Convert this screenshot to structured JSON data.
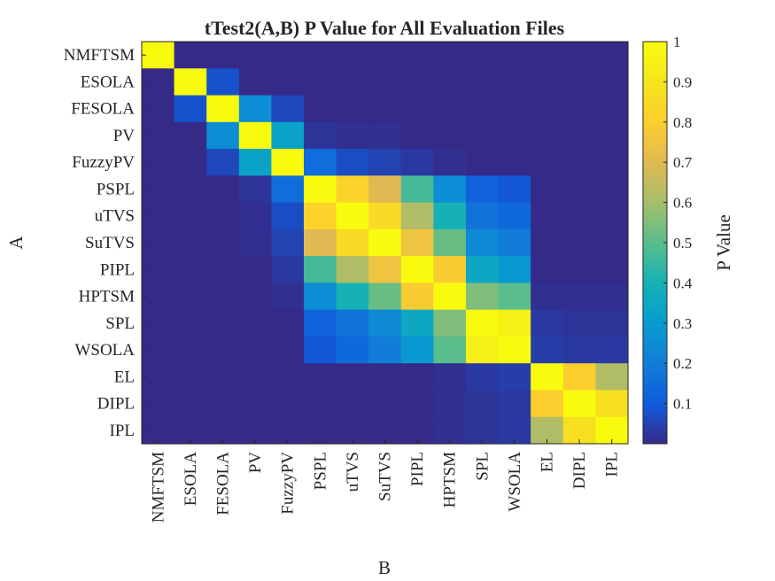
{
  "chart_data": {
    "type": "heatmap",
    "title": "tTest2(A,B) P Value for All Evaluation Files",
    "xlabel": "B",
    "ylabel": "A",
    "colorbar_label": "P Value",
    "colorbar_ticks": [
      "0.1",
      "0.2",
      "0.3",
      "0.4",
      "0.5",
      "0.6",
      "0.7",
      "0.8",
      "0.9",
      "1"
    ],
    "colorbar_range": [
      0,
      1
    ],
    "colormap": "parula",
    "categories": [
      "NMFTSM",
      "ESOLA",
      "FESOLA",
      "PV",
      "FuzzyPV",
      "PSPL",
      "uTVS",
      "SuTVS",
      "PIPL",
      "HPTSM",
      "SPL",
      "WSOLA",
      "EL",
      "DIPL",
      "IPL"
    ],
    "matrix": [
      [
        1.0,
        0.0,
        0.0,
        0.0,
        0.0,
        0.0,
        0.0,
        0.0,
        0.0,
        0.0,
        0.0,
        0.0,
        0.0,
        0.0,
        0.0
      ],
      [
        0.0,
        1.0,
        0.08,
        0.0,
        0.0,
        0.0,
        0.0,
        0.0,
        0.0,
        0.0,
        0.0,
        0.0,
        0.0,
        0.0,
        0.0
      ],
      [
        0.0,
        0.08,
        1.0,
        0.25,
        0.06,
        0.0,
        0.0,
        0.0,
        0.0,
        0.0,
        0.0,
        0.0,
        0.0,
        0.0,
        0.0
      ],
      [
        0.0,
        0.0,
        0.25,
        1.0,
        0.33,
        0.02,
        0.01,
        0.01,
        0.0,
        0.0,
        0.0,
        0.0,
        0.0,
        0.0,
        0.0
      ],
      [
        0.0,
        0.0,
        0.06,
        0.33,
        1.0,
        0.15,
        0.07,
        0.05,
        0.03,
        0.01,
        0.0,
        0.0,
        0.0,
        0.0,
        0.0
      ],
      [
        0.0,
        0.0,
        0.0,
        0.02,
        0.15,
        1.0,
        0.82,
        0.7,
        0.47,
        0.25,
        0.12,
        0.09,
        0.0,
        0.0,
        0.0
      ],
      [
        0.0,
        0.0,
        0.0,
        0.01,
        0.07,
        0.82,
        1.0,
        0.85,
        0.62,
        0.4,
        0.17,
        0.14,
        0.0,
        0.0,
        0.0
      ],
      [
        0.0,
        0.0,
        0.0,
        0.01,
        0.05,
        0.7,
        0.85,
        1.0,
        0.75,
        0.52,
        0.24,
        0.2,
        0.0,
        0.0,
        0.0
      ],
      [
        0.0,
        0.0,
        0.0,
        0.0,
        0.03,
        0.47,
        0.62,
        0.75,
        1.0,
        0.79,
        0.35,
        0.29,
        0.0,
        0.0,
        0.0
      ],
      [
        0.0,
        0.0,
        0.0,
        0.0,
        0.01,
        0.25,
        0.4,
        0.52,
        0.79,
        1.0,
        0.55,
        0.5,
        0.01,
        0.01,
        0.01
      ],
      [
        0.0,
        0.0,
        0.0,
        0.0,
        0.0,
        0.12,
        0.17,
        0.24,
        0.35,
        0.55,
        1.0,
        0.95,
        0.03,
        0.02,
        0.02
      ],
      [
        0.0,
        0.0,
        0.0,
        0.0,
        0.0,
        0.09,
        0.14,
        0.2,
        0.29,
        0.5,
        0.95,
        1.0,
        0.04,
        0.03,
        0.03
      ],
      [
        0.0,
        0.0,
        0.0,
        0.0,
        0.0,
        0.0,
        0.0,
        0.0,
        0.0,
        0.01,
        0.03,
        0.04,
        1.0,
        0.8,
        0.62
      ],
      [
        0.0,
        0.0,
        0.0,
        0.0,
        0.0,
        0.0,
        0.0,
        0.0,
        0.0,
        0.01,
        0.02,
        0.03,
        0.8,
        1.0,
        0.88
      ],
      [
        0.0,
        0.0,
        0.0,
        0.0,
        0.0,
        0.0,
        0.0,
        0.0,
        0.0,
        0.01,
        0.02,
        0.03,
        0.62,
        0.88,
        1.0
      ]
    ]
  }
}
